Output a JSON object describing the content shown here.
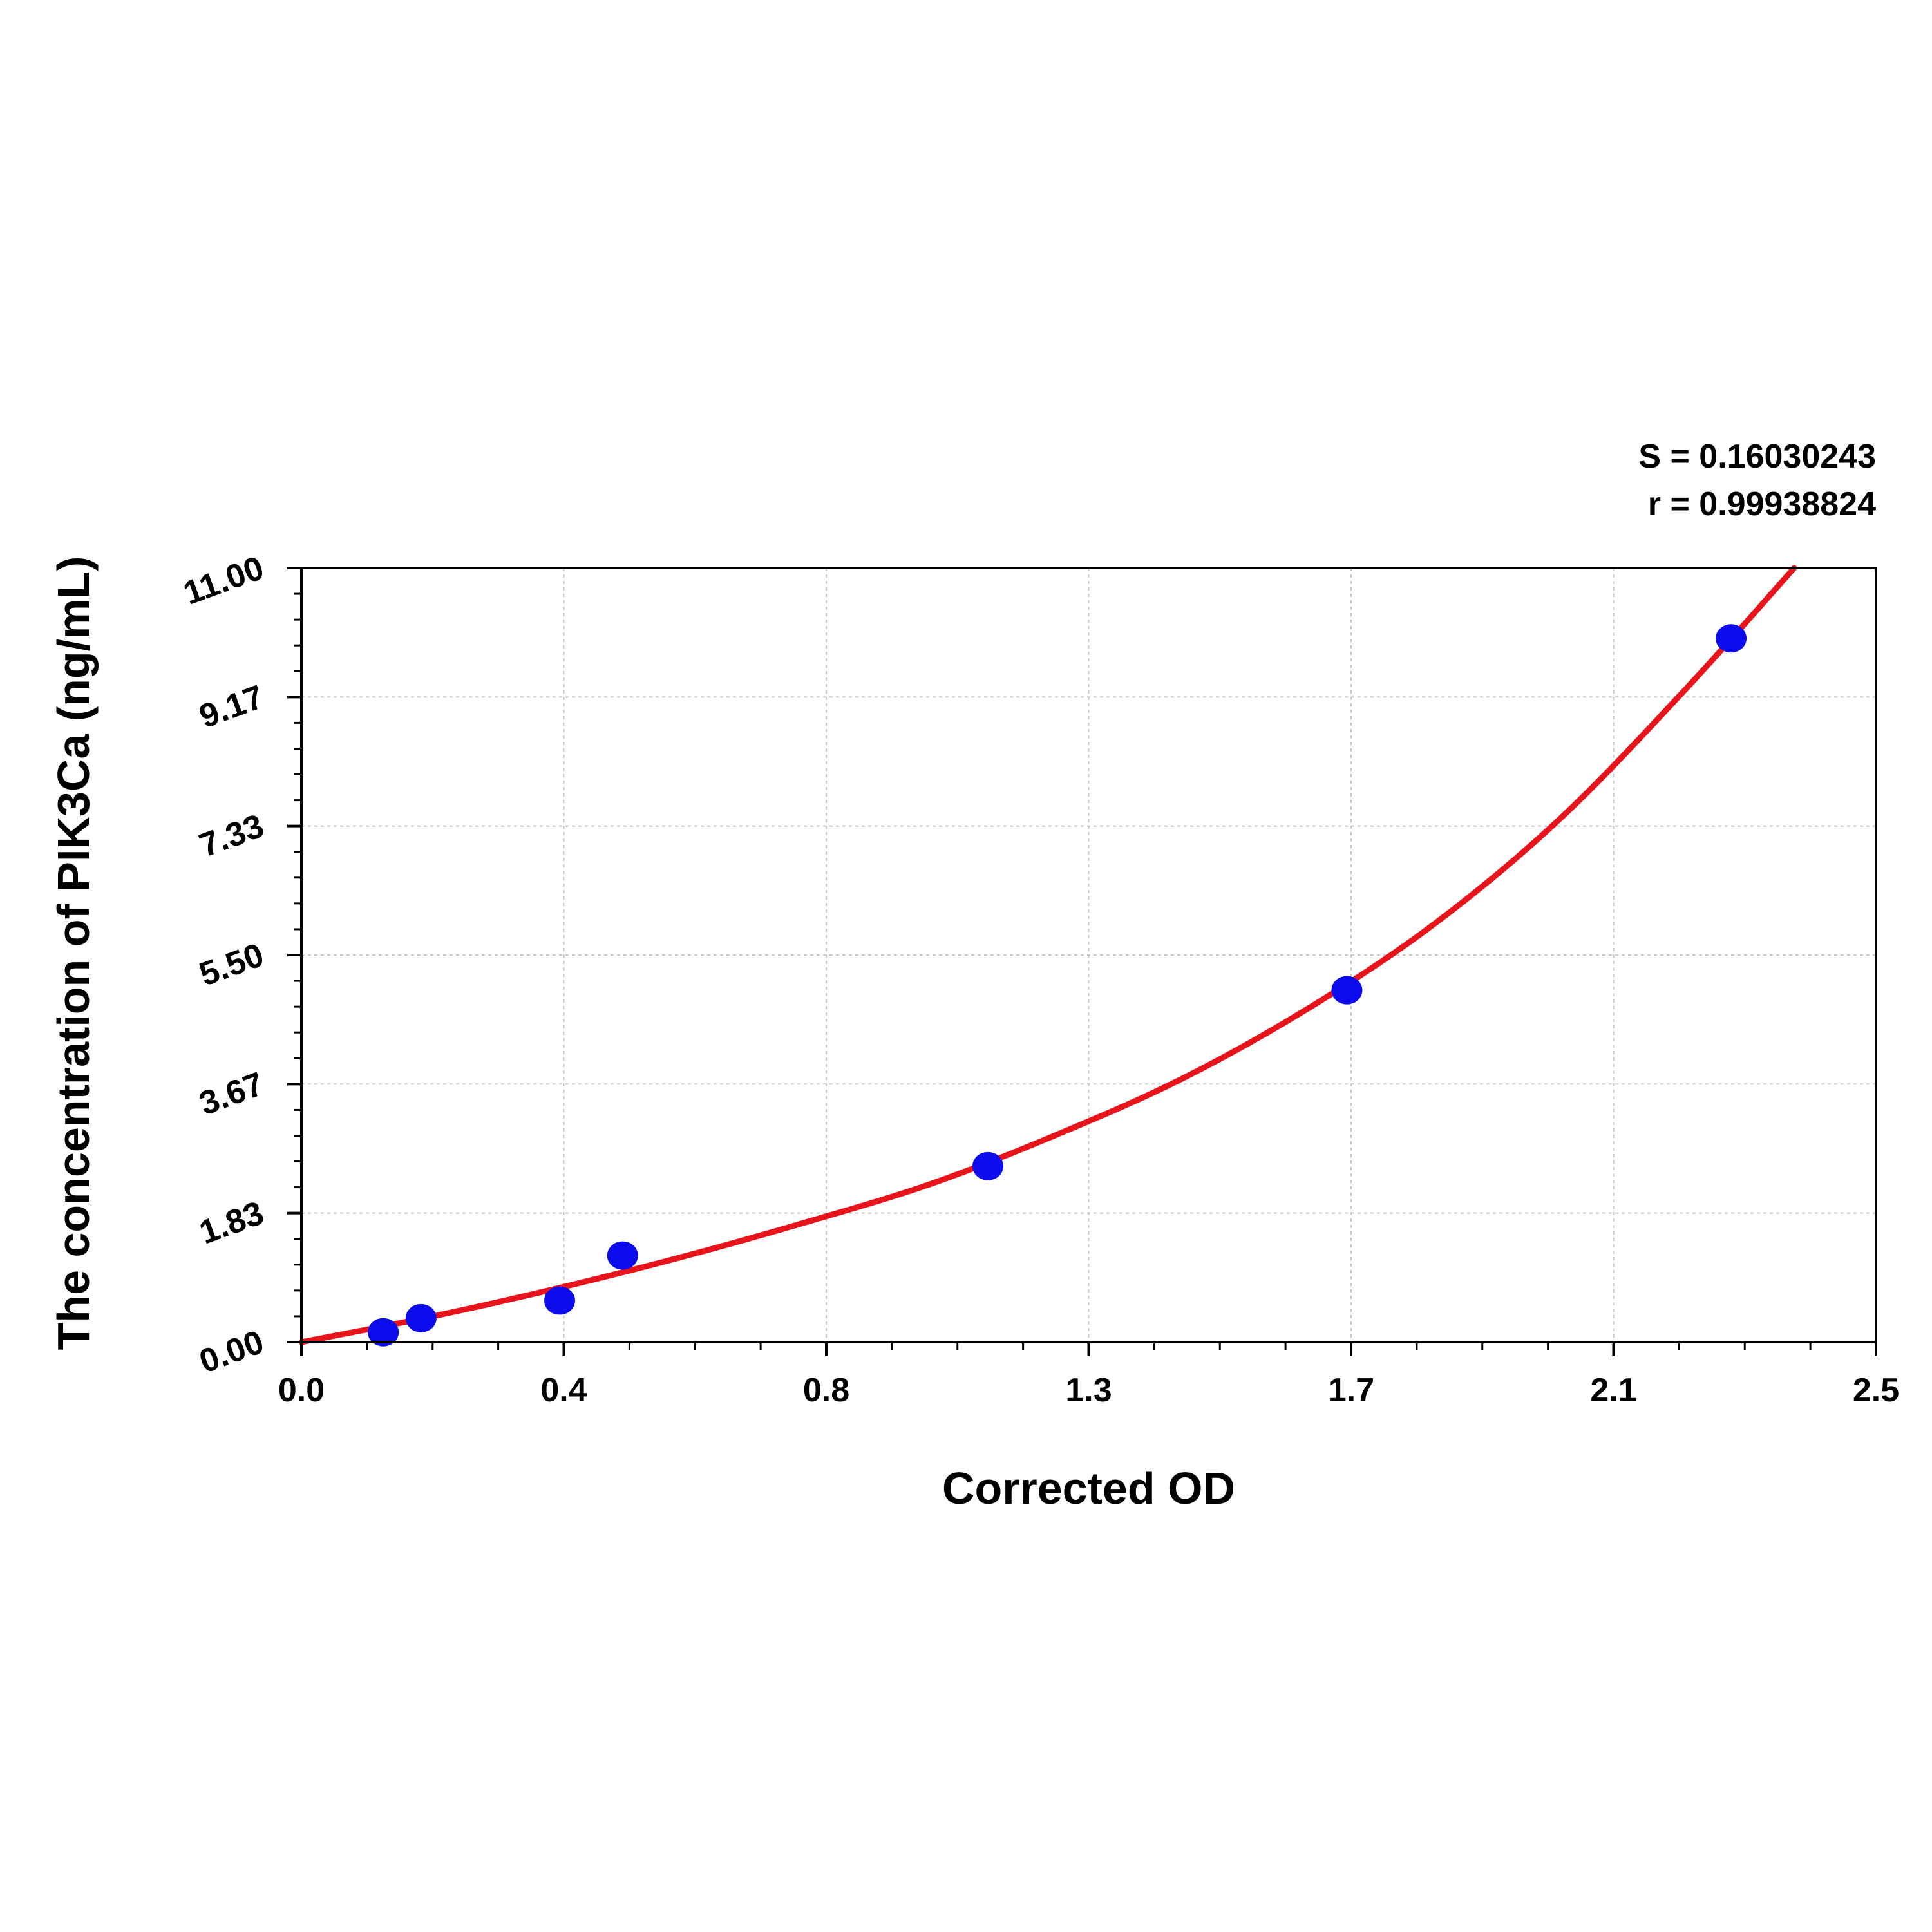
{
  "chart_data": {
    "type": "scatter",
    "xlabel": "Corrected OD",
    "ylabel": "The concentration of PIK3Ca (ng/mL)",
    "xlim": [
      0.0,
      2.5
    ],
    "ylim": [
      0.0,
      11.0
    ],
    "x_ticks": [
      "0.0",
      "0.4",
      "0.8",
      "1.3",
      "1.7",
      "2.1",
      "2.5"
    ],
    "y_ticks": [
      "0.00",
      "1.83",
      "3.67",
      "5.50",
      "7.33",
      "9.17",
      "11.00"
    ],
    "grid": true,
    "stats": {
      "s_label": "S = 0.16030243",
      "r_label": "r = 0.99938824"
    },
    "points": {
      "x": [
        0.13,
        0.19,
        0.41,
        0.51,
        1.09,
        1.66,
        2.27
      ],
      "y": [
        0.14,
        0.34,
        0.59,
        1.23,
        2.5,
        5.0,
        10.0
      ]
    },
    "fit_curve": {
      "x": [
        0.0,
        0.2,
        0.4,
        0.6,
        0.8,
        1.0,
        1.2,
        1.4,
        1.6,
        1.8,
        2.0,
        2.2,
        2.37
      ],
      "y": [
        0.0,
        0.35,
        0.75,
        1.2,
        1.7,
        2.25,
        2.95,
        3.75,
        4.75,
        5.95,
        7.45,
        9.3,
        11.0
      ]
    },
    "colors": {
      "point": "#0b0bec",
      "curve": "#e8141b",
      "grid": "#c8c8c8",
      "axis": "#000000"
    }
  }
}
